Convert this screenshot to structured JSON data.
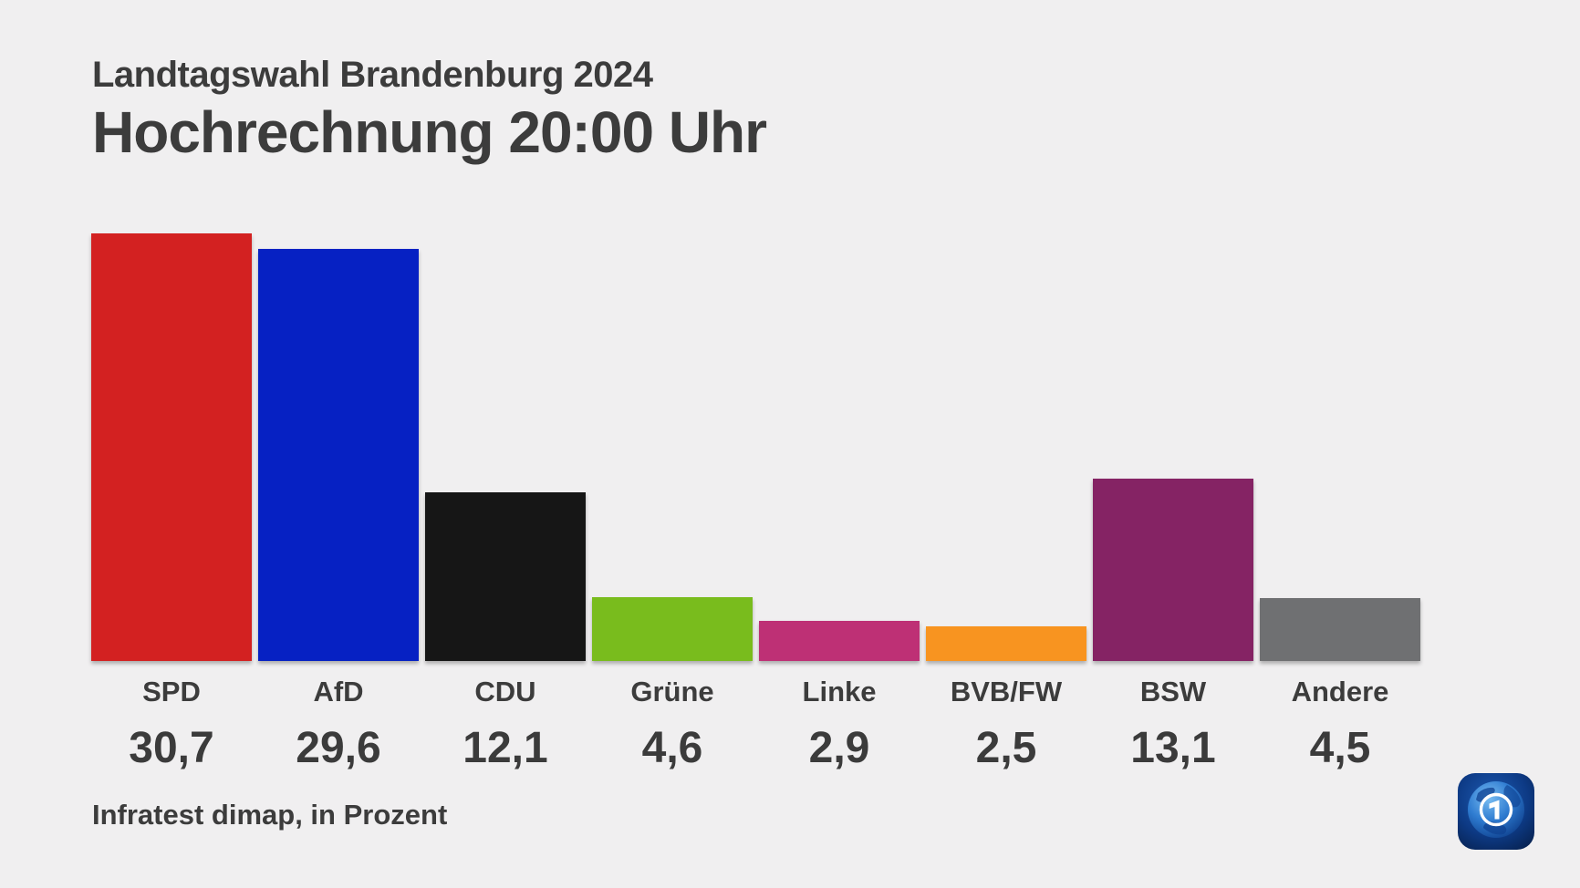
{
  "page": {
    "kicker": "Landtagswahl Brandenburg 2024",
    "title": "Hochrechnung 20:00 Uhr",
    "source": "Infratest dimap, in Prozent"
  },
  "chart_data": {
    "type": "bar",
    "title": "Hochrechnung 20:00 Uhr",
    "subtitle": "Landtagswahl Brandenburg 2024",
    "source": "Infratest dimap, in Prozent",
    "unit": "Prozent",
    "categories": [
      "SPD",
      "AfD",
      "CDU",
      "Grüne",
      "Linke",
      "BVB/FW",
      "BSW",
      "Andere"
    ],
    "values": [
      30.7,
      29.6,
      12.1,
      4.6,
      2.9,
      2.5,
      13.1,
      4.5
    ],
    "value_labels": [
      "30,7",
      "29,6",
      "12,1",
      "4,6",
      "2,9",
      "2,5",
      "13,1",
      "4,5"
    ],
    "colors": [
      "#d32121",
      "#0621c3",
      "#161616",
      "#79bc1d",
      "#be3075",
      "#f89420",
      "#852364",
      "#6f7072"
    ],
    "ylim": [
      0,
      33
    ],
    "grid": false,
    "legend": false,
    "background": "#f0eff0",
    "text_color": "#3c3c3c"
  },
  "logo": {
    "glyph": "1"
  }
}
